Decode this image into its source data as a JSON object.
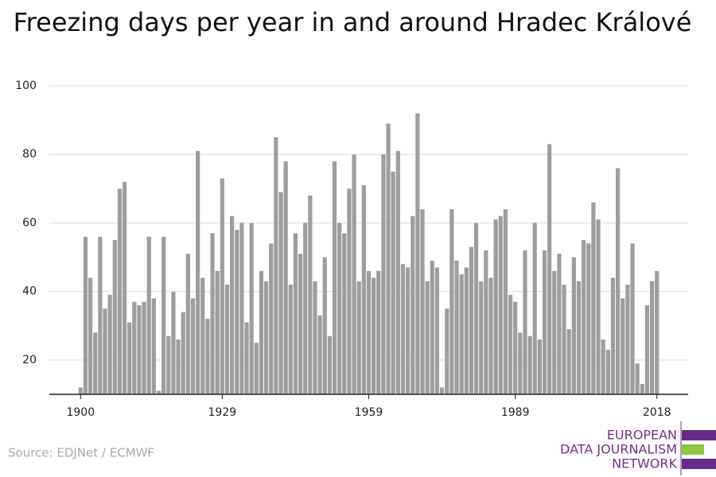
{
  "chart_data": {
    "type": "bar",
    "title": "Freezing days per year in and around Hradec Králové",
    "source": "Source: EDJNet / ECMWF",
    "color": "#9e9e9e",
    "grid": true,
    "x": [
      1900,
      1901,
      1902,
      1903,
      1904,
      1905,
      1906,
      1907,
      1908,
      1909,
      1910,
      1911,
      1912,
      1913,
      1914,
      1915,
      1916,
      1917,
      1918,
      1919,
      1920,
      1921,
      1922,
      1923,
      1924,
      1925,
      1926,
      1927,
      1928,
      1929,
      1930,
      1931,
      1932,
      1933,
      1934,
      1935,
      1936,
      1937,
      1938,
      1939,
      1940,
      1941,
      1942,
      1943,
      1944,
      1945,
      1946,
      1947,
      1948,
      1949,
      1950,
      1951,
      1952,
      1953,
      1954,
      1955,
      1956,
      1957,
      1958,
      1959,
      1960,
      1961,
      1962,
      1963,
      1964,
      1965,
      1966,
      1967,
      1968,
      1969,
      1970,
      1971,
      1972,
      1973,
      1974,
      1975,
      1976,
      1977,
      1978,
      1979,
      1980,
      1981,
      1982,
      1983,
      1984,
      1985,
      1986,
      1987,
      1988,
      1989,
      1990,
      1991,
      1992,
      1993,
      1994,
      1995,
      1996,
      1997,
      1998,
      1999,
      2000,
      2001,
      2002,
      2003,
      2004,
      2005,
      2006,
      2007,
      2008,
      2009,
      2010,
      2011,
      2012,
      2013,
      2014,
      2015,
      2016,
      2017,
      2018
    ],
    "values": [
      12,
      56,
      44,
      28,
      56,
      35,
      39,
      55,
      70,
      72,
      31,
      37,
      36,
      37,
      56,
      38,
      11,
      56,
      27,
      40,
      26,
      34,
      51,
      38,
      81,
      44,
      32,
      57,
      46,
      73,
      42,
      62,
      58,
      60,
      31,
      60,
      25,
      46,
      43,
      54,
      85,
      69,
      78,
      42,
      57,
      51,
      60,
      68,
      43,
      33,
      50,
      27,
      78,
      60,
      57,
      70,
      80,
      43,
      71,
      46,
      44,
      46,
      80,
      89,
      75,
      81,
      48,
      47,
      62,
      92,
      64,
      43,
      49,
      47,
      12,
      35,
      64,
      49,
      45,
      47,
      53,
      60,
      43,
      52,
      44,
      61,
      62,
      64,
      39,
      37,
      28,
      52,
      27,
      60,
      26,
      52,
      83,
      46,
      51,
      42,
      29,
      50,
      43,
      55,
      54,
      66,
      61,
      26,
      23,
      44,
      76,
      38,
      42,
      54,
      19,
      13,
      36,
      43,
      46
    ],
    "xlim": [
      1893.6,
      2024.4
    ],
    "xticks": [
      1900,
      1929,
      1959,
      1989,
      2018
    ],
    "ylim": [
      10,
      100
    ],
    "yticks": [
      20,
      40,
      60,
      80,
      100
    ]
  },
  "logo": {
    "lines": [
      "EUROPEAN",
      "DATA JOURNALISM",
      "NETWORK"
    ]
  }
}
